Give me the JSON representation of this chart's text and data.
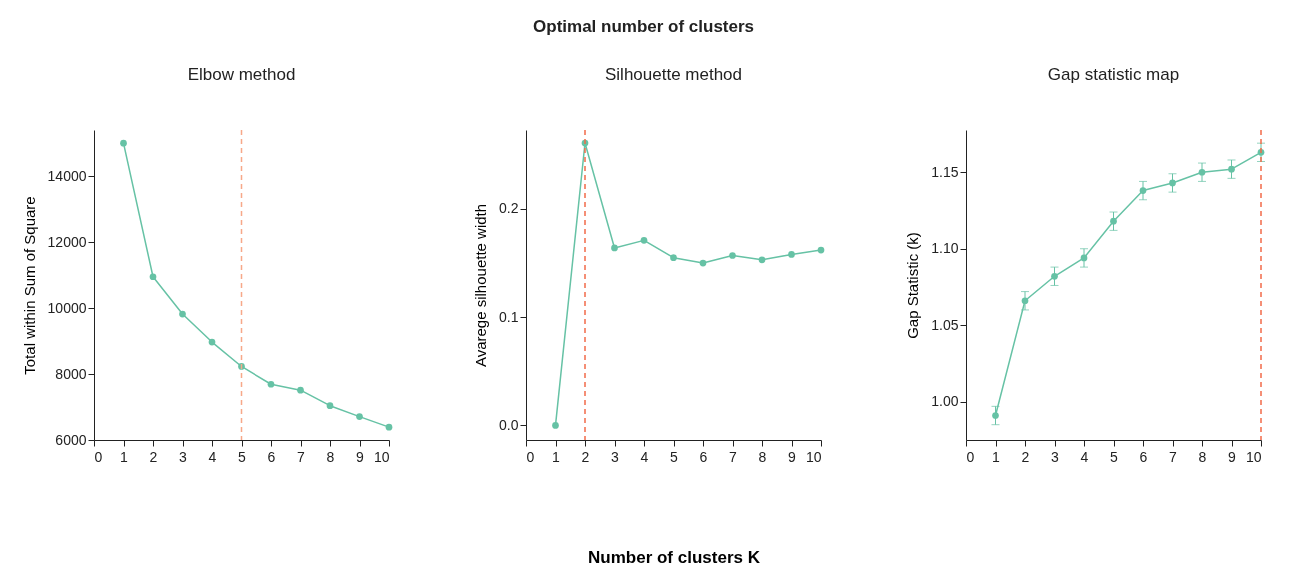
{
  "chart_data": [
    {
      "type": "line",
      "title": "Elbow method",
      "ylabel": "Total within Sum of Square",
      "x": [
        1,
        2,
        3,
        4,
        5,
        6,
        7,
        8,
        9,
        10
      ],
      "series": [
        {
          "color": "#66c2a5",
          "values": [
            15000,
            10950,
            9820,
            8970,
            8230,
            7690,
            7510,
            7040,
            6710,
            6390
          ]
        }
      ],
      "xlim": [
        0,
        10
      ],
      "xticks": [
        0,
        1,
        2,
        3,
        4,
        5,
        6,
        7,
        8,
        9,
        10
      ],
      "ylim": [
        6000,
        15400
      ],
      "yticks": [
        6000,
        8000,
        10000,
        12000,
        14000
      ],
      "ref_lines": [
        {
          "axis": "x",
          "value": 5,
          "color": "#f7a889",
          "line_style": "dashed"
        }
      ],
      "marker": "circle",
      "grid": false
    },
    {
      "type": "line",
      "title": "Silhouette method",
      "xlabel": "Number of clusters K",
      "ylabel": "Avarege silhouette width",
      "annotations": [
        "Optimal number of clusters"
      ],
      "x": [
        1,
        2,
        3,
        4,
        5,
        6,
        7,
        8,
        9,
        10
      ],
      "series": [
        {
          "color": "#66c2a5",
          "values": [
            0,
            0.261,
            0.164,
            0.171,
            0.155,
            0.15,
            0.157,
            0.153,
            0.158,
            0.162
          ]
        }
      ],
      "xlim": [
        0,
        10
      ],
      "xticks": [
        0,
        1,
        2,
        3,
        4,
        5,
        6,
        7,
        8,
        9,
        10
      ],
      "ylim": [
        -0.0135,
        0.273
      ],
      "yticks": [
        {
          "value": 0,
          "label": "0.0"
        },
        0.1,
        0.2
      ],
      "ref_lines": [
        {
          "axis": "x",
          "value": 2,
          "color": "#f26b4a",
          "line_style": "dashed"
        }
      ],
      "marker": "circle",
      "grid": false
    },
    {
      "type": "line",
      "title": "Gap statistic map",
      "ylabel": "Gap Statistic (k)",
      "x": [
        1,
        2,
        3,
        4,
        5,
        6,
        7,
        8,
        9,
        10
      ],
      "series": [
        {
          "color": "#66c2a5",
          "values": [
            0.991,
            1.066,
            1.082,
            1.094,
            1.118,
            1.138,
            1.143,
            1.15,
            1.152,
            1.163
          ],
          "errors": [
            0.006,
            0.006,
            0.006,
            0.006,
            0.006,
            0.006,
            0.006,
            0.006,
            0.006,
            0.006
          ]
        }
      ],
      "xlim": [
        0,
        10
      ],
      "xticks": [
        0,
        1,
        2,
        3,
        4,
        5,
        6,
        7,
        8,
        9,
        10
      ],
      "ylim": [
        0.975,
        1.1776
      ],
      "yticks": [
        {
          "value": 1,
          "label": "1.00"
        },
        1.05,
        {
          "value": 1.1,
          "label": "1.10"
        },
        1.15
      ],
      "ref_lines": [
        {
          "axis": "x",
          "value": 10,
          "color": "#f26b4a",
          "line_style": "dashed"
        }
      ],
      "marker": "circle",
      "grid": false
    }
  ]
}
